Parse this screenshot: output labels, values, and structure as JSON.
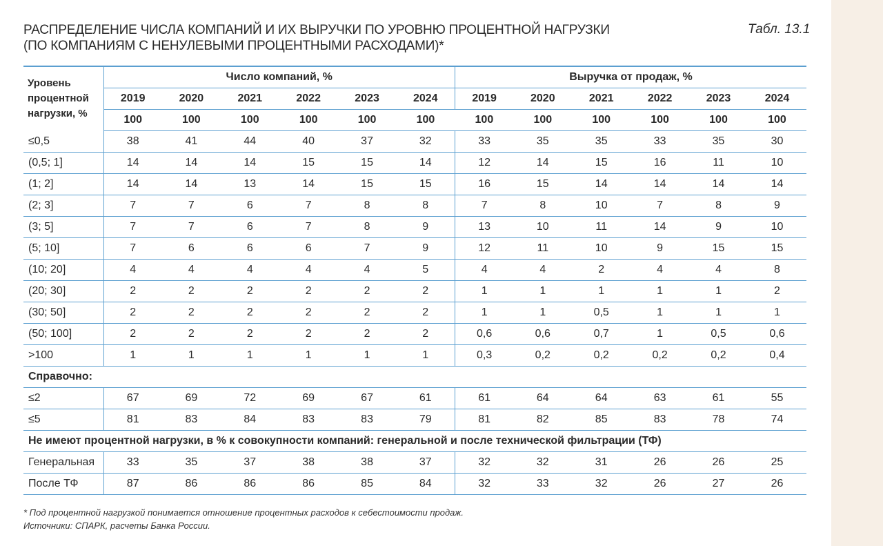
{
  "title_line1": "РАСПРЕДЕЛЕНИЕ ЧИСЛА КОМПАНИЙ И ИХ ВЫРУЧКИ ПО УРОВНЮ ПРОЦЕНТНОЙ НАГРУЗКИ",
  "title_line2": "(ПО КОМПАНИЯМ С НЕНУЛЕВЫМИ ПРОЦЕНТНЫМИ РАСХОДАМИ)*",
  "table_ref": "Табл. 13.1",
  "header": {
    "row_label_1": "Уровень",
    "row_label_2": "процентной",
    "row_label_3": "нагрузки, %",
    "group_companies": "Число компаний, %",
    "group_revenue": "Выручка от продаж, %",
    "years": [
      "2019",
      "2020",
      "2021",
      "2022",
      "2023",
      "2024"
    ],
    "totals": [
      "100",
      "100",
      "100",
      "100",
      "100",
      "100",
      "100",
      "100",
      "100",
      "100",
      "100",
      "100"
    ]
  },
  "rows": [
    {
      "label": "≤0,5",
      "values": [
        "38",
        "41",
        "44",
        "40",
        "37",
        "32",
        "33",
        "35",
        "35",
        "33",
        "35",
        "30"
      ]
    },
    {
      "label": "(0,5; 1]",
      "values": [
        "14",
        "14",
        "14",
        "15",
        "15",
        "14",
        "12",
        "14",
        "15",
        "16",
        "11",
        "10"
      ]
    },
    {
      "label": "(1; 2]",
      "values": [
        "14",
        "14",
        "13",
        "14",
        "15",
        "15",
        "16",
        "15",
        "14",
        "14",
        "14",
        "14"
      ]
    },
    {
      "label": "(2; 3]",
      "values": [
        "7",
        "7",
        "6",
        "7",
        "8",
        "8",
        "7",
        "8",
        "10",
        "7",
        "8",
        "9"
      ]
    },
    {
      "label": "(3; 5]",
      "values": [
        "7",
        "7",
        "6",
        "7",
        "8",
        "9",
        "13",
        "10",
        "11",
        "14",
        "9",
        "10"
      ]
    },
    {
      "label": "(5; 10]",
      "values": [
        "7",
        "6",
        "6",
        "6",
        "7",
        "9",
        "12",
        "11",
        "10",
        "9",
        "15",
        "15"
      ]
    },
    {
      "label": "(10; 20]",
      "values": [
        "4",
        "4",
        "4",
        "4",
        "4",
        "5",
        "4",
        "4",
        "2",
        "4",
        "4",
        "8"
      ]
    },
    {
      "label": "(20; 30]",
      "values": [
        "2",
        "2",
        "2",
        "2",
        "2",
        "2",
        "1",
        "1",
        "1",
        "1",
        "1",
        "2"
      ]
    },
    {
      "label": "(30; 50]",
      "values": [
        "2",
        "2",
        "2",
        "2",
        "2",
        "2",
        "1",
        "1",
        "0,5",
        "1",
        "1",
        "1"
      ]
    },
    {
      "label": "(50; 100]",
      "values": [
        "2",
        "2",
        "2",
        "2",
        "2",
        "2",
        "0,6",
        "0,6",
        "0,7",
        "1",
        "0,5",
        "0,6"
      ]
    },
    {
      "label": ">100",
      "values": [
        "1",
        "1",
        "1",
        "1",
        "1",
        "1",
        "0,3",
        "0,2",
        "0,2",
        "0,2",
        "0,2",
        "0,4"
      ]
    }
  ],
  "section_reference": "Справочно:",
  "reference_rows": [
    {
      "label": "≤2",
      "values": [
        "67",
        "69",
        "72",
        "69",
        "67",
        "61",
        "61",
        "64",
        "64",
        "63",
        "61",
        "55"
      ]
    },
    {
      "label": "≤5",
      "values": [
        "81",
        "83",
        "84",
        "83",
        "83",
        "79",
        "81",
        "82",
        "85",
        "83",
        "78",
        "74"
      ]
    }
  ],
  "section_no_load": "Не имеют процентной нагрузки, в % к совокупности компаний: генеральной и после технической фильтрации (ТФ)",
  "no_load_rows": [
    {
      "label": "Генеральная",
      "values": [
        "33",
        "35",
        "37",
        "38",
        "38",
        "37",
        "32",
        "32",
        "31",
        "26",
        "26",
        "25"
      ]
    },
    {
      "label": "После ТФ",
      "values": [
        "87",
        "86",
        "86",
        "86",
        "85",
        "84",
        "32",
        "33",
        "32",
        "26",
        "27",
        "26"
      ]
    }
  ],
  "footnote_1": "* Под процентной нагрузкой понимается отношение процентных расходов к себестоимости продаж.",
  "footnote_2": "Источники: СПАРК, расчеты Банка России.",
  "colors": {
    "rule": "#5b9fd0",
    "text": "#2a2a2a",
    "side_bg": "#f7efe6"
  }
}
